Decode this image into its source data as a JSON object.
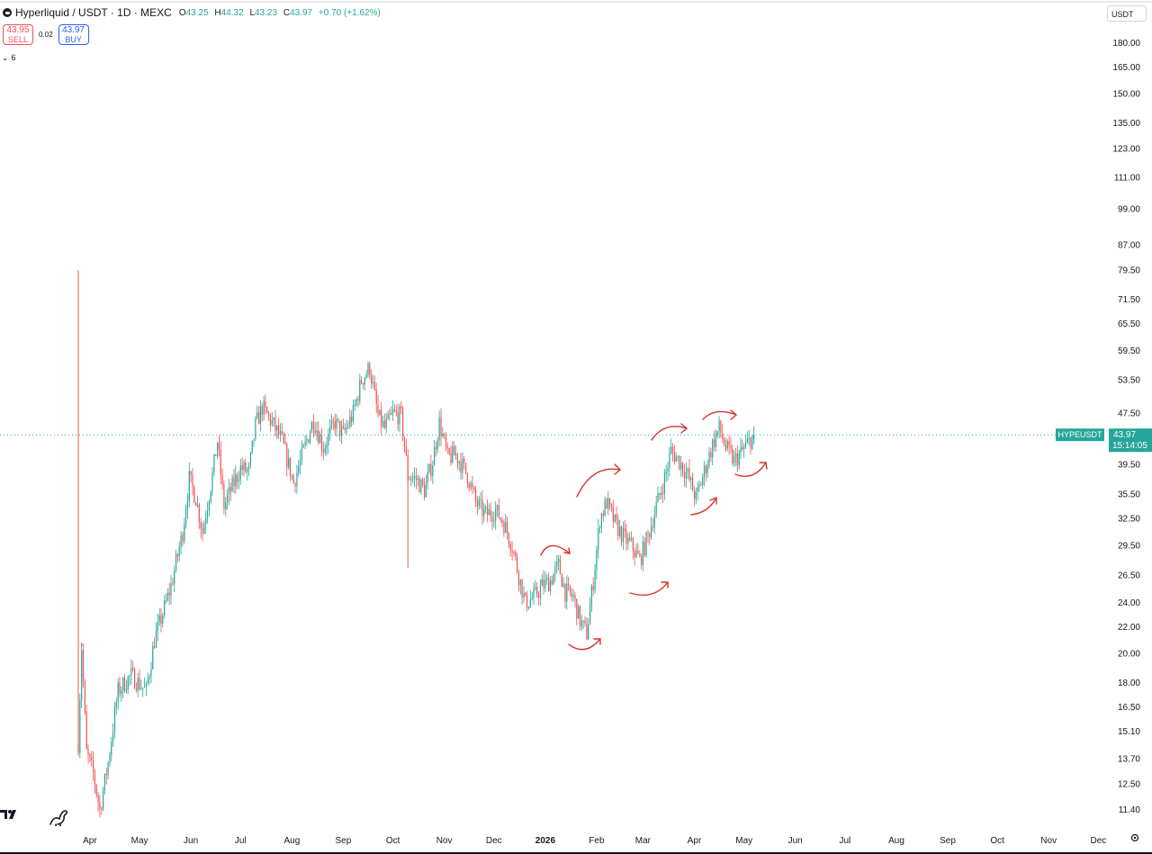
{
  "header": {
    "title": "Hyperliquid / USDT · 1D · MEXC",
    "ohlc": [
      {
        "key": "O",
        "value": "43.25"
      },
      {
        "key": "H",
        "value": "44.32"
      },
      {
        "key": "L",
        "value": "43.23"
      },
      {
        "key": "C",
        "value": "43.97"
      }
    ],
    "change": "+0.70 (+1.62%)"
  },
  "trade": {
    "sell_price": "43.95",
    "sell_label": "SELL",
    "spread": "0.02",
    "buy_price": "43.97",
    "buy_label": "BUY"
  },
  "indicator_toggle": {
    "chevron": "⌄",
    "count": "6"
  },
  "currency_button": "USDT",
  "colors": {
    "up": "#26a69a",
    "down": "#ef5350",
    "annotation": "#d9342b",
    "price_badge": "#26a69a"
  },
  "chart_data": {
    "type": "candlestick",
    "symbol": "HYPEUSDT",
    "last_price": 43.97,
    "last_price_label": "43.97",
    "countdown": "15:14:05",
    "y_scale": "log",
    "y_ticks": [
      "180.00",
      "165.00",
      "150.00",
      "135.00",
      "123.00",
      "111.00",
      "99.00",
      "87.00",
      "79.50",
      "71.50",
      "65.50",
      "59.50",
      "53.50",
      "47.50",
      "39.50",
      "35.50",
      "32.50",
      "29.50",
      "26.50",
      "24.00",
      "22.00",
      "20.00",
      "18.00",
      "16.50",
      "15.10",
      "13.70",
      "12.50",
      "11.40"
    ],
    "x_ticks": [
      "Apr",
      "May",
      "Jun",
      "Jul",
      "Aug",
      "Sep",
      "Oct",
      "Nov",
      "Dec",
      "2026",
      "Feb",
      "Mar",
      "Apr",
      "May",
      "Jun",
      "Jul",
      "Aug",
      "Sep",
      "Oct",
      "Nov",
      "Dec"
    ],
    "x_range": [
      "2025-03-20",
      "2026-12-31"
    ],
    "first_candle": "2025-03-25",
    "anchors": [
      [
        "2025-03-25",
        14.5
      ],
      [
        "2025-03-27",
        20.5
      ],
      [
        "2025-03-30",
        14.0
      ],
      [
        "2025-04-03",
        13.0
      ],
      [
        "2025-04-07",
        11.4
      ],
      [
        "2025-04-12",
        13.5
      ],
      [
        "2025-04-18",
        17.5
      ],
      [
        "2025-04-26",
        18.5
      ],
      [
        "2025-05-05",
        17.5
      ],
      [
        "2025-05-10",
        21.0
      ],
      [
        "2025-05-20",
        25.5
      ],
      [
        "2025-05-27",
        31.0
      ],
      [
        "2025-05-31",
        37.5
      ],
      [
        "2025-06-04",
        35.0
      ],
      [
        "2025-06-08",
        31.0
      ],
      [
        "2025-06-14",
        38.0
      ],
      [
        "2025-06-17",
        43.0
      ],
      [
        "2025-06-21",
        34.0
      ],
      [
        "2025-06-25",
        36.0
      ],
      [
        "2025-07-01",
        39.0
      ],
      [
        "2025-07-06",
        38.5
      ],
      [
        "2025-07-10",
        45.5
      ],
      [
        "2025-07-14",
        48.5
      ],
      [
        "2025-07-20",
        46.0
      ],
      [
        "2025-07-26",
        43.0
      ],
      [
        "2025-08-02",
        37.0
      ],
      [
        "2025-08-08",
        41.5
      ],
      [
        "2025-08-14",
        46.5
      ],
      [
        "2025-08-20",
        42.0
      ],
      [
        "2025-08-27",
        46.0
      ],
      [
        "2025-09-01",
        44.0
      ],
      [
        "2025-09-07",
        47.5
      ],
      [
        "2025-09-12",
        53.5
      ],
      [
        "2025-09-17",
        56.0
      ],
      [
        "2025-09-22",
        47.0
      ],
      [
        "2025-09-26",
        45.0
      ],
      [
        "2025-10-01",
        47.5
      ],
      [
        "2025-10-06",
        47.0
      ],
      [
        "2025-10-10",
        38.0
      ],
      [
        "2025-10-15",
        37.5
      ],
      [
        "2025-10-20",
        36.0
      ],
      [
        "2025-10-25",
        40.0
      ],
      [
        "2025-10-29",
        46.0
      ],
      [
        "2025-11-03",
        40.5
      ],
      [
        "2025-11-08",
        41.0
      ],
      [
        "2025-11-15",
        38.0
      ],
      [
        "2025-11-20",
        34.5
      ],
      [
        "2025-11-26",
        33.0
      ],
      [
        "2025-12-02",
        33.5
      ],
      [
        "2025-12-07",
        32.0
      ],
      [
        "2025-12-12",
        29.5
      ],
      [
        "2025-12-16",
        26.5
      ],
      [
        "2025-12-20",
        24.0
      ],
      [
        "2025-12-25",
        24.5
      ],
      [
        "2025-12-30",
        25.5
      ],
      [
        "2026-01-04",
        26.0
      ],
      [
        "2026-01-09",
        27.5
      ],
      [
        "2026-01-13",
        25.0
      ],
      [
        "2026-01-18",
        24.5
      ],
      [
        "2026-01-22",
        22.5
      ],
      [
        "2026-01-26",
        21.5
      ],
      [
        "2026-01-30",
        26.0
      ],
      [
        "2026-02-03",
        32.5
      ],
      [
        "2026-02-07",
        34.5
      ],
      [
        "2026-02-12",
        32.0
      ],
      [
        "2026-02-17",
        30.5
      ],
      [
        "2026-02-22",
        29.5
      ],
      [
        "2026-02-27",
        28.0
      ],
      [
        "2026-03-04",
        30.5
      ],
      [
        "2026-03-09",
        34.0
      ],
      [
        "2026-03-14",
        37.5
      ],
      [
        "2026-03-18",
        41.5
      ],
      [
        "2026-03-23",
        40.0
      ],
      [
        "2026-03-28",
        38.0
      ],
      [
        "2026-04-02",
        35.0
      ],
      [
        "2026-04-07",
        38.5
      ],
      [
        "2026-04-12",
        42.5
      ],
      [
        "2026-04-16",
        45.0
      ],
      [
        "2026-04-20",
        42.0
      ],
      [
        "2026-04-25",
        40.0
      ],
      [
        "2026-04-30",
        41.5
      ],
      [
        "2026-05-05",
        43.25
      ],
      [
        "2026-05-07",
        43.97
      ]
    ],
    "spikes": [
      {
        "date": "2025-03-25",
        "high": 79.5
      },
      {
        "date": "2025-03-27",
        "high": 20.8
      },
      {
        "date": "2025-10-10",
        "low": 27.2
      }
    ]
  }
}
